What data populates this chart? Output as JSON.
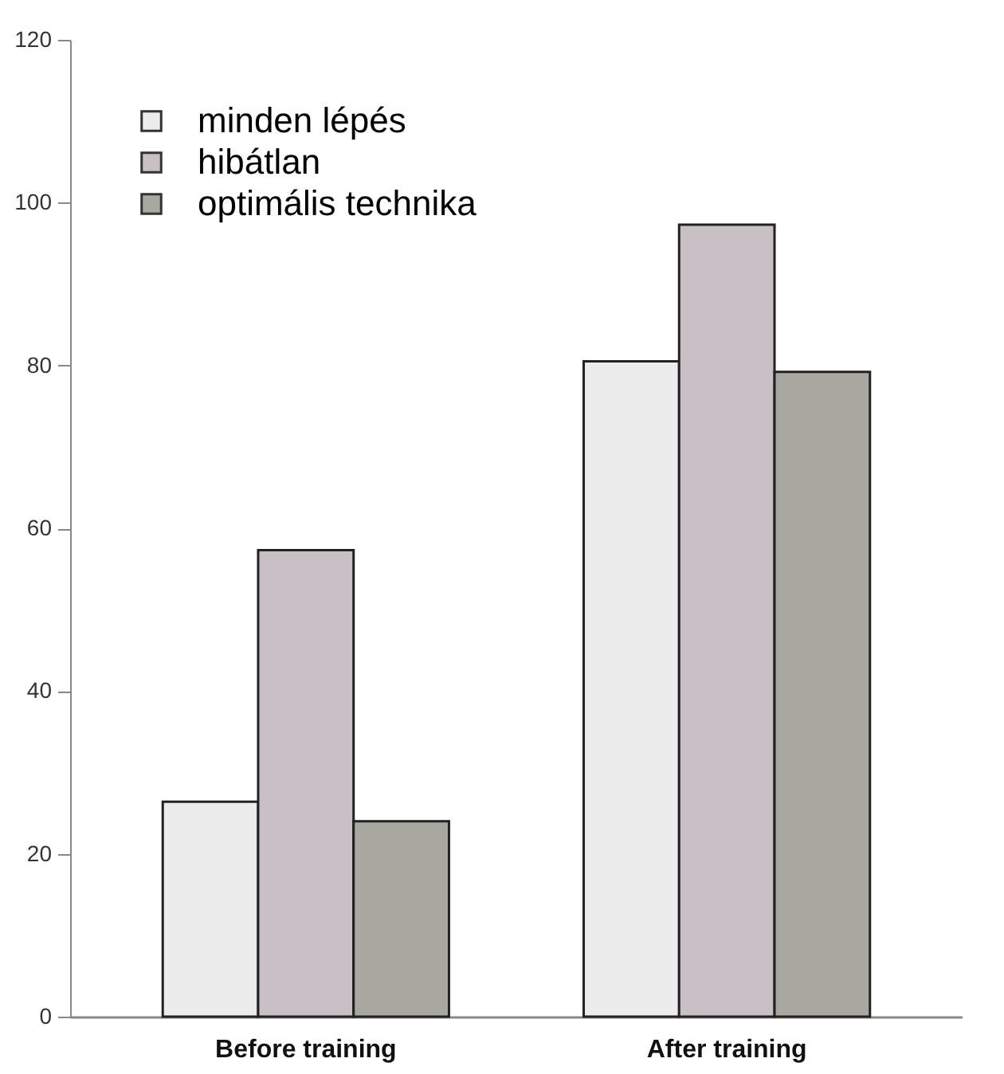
{
  "chart_data": {
    "type": "bar",
    "categories": [
      "Before training",
      "After training"
    ],
    "series": [
      {
        "name": "minden lépés",
        "color": "#ececec",
        "values": [
          26.4,
          80.5
        ]
      },
      {
        "name": "hibátlan",
        "color": "#c8c0c4",
        "values": [
          57.3,
          97.3
        ]
      },
      {
        "name": "optimális technika",
        "color": "#a8a8a0",
        "values": [
          24.0,
          79.2
        ]
      }
    ],
    "ylim": [
      0,
      120
    ],
    "yticks": [
      0,
      20,
      40,
      60,
      80,
      100,
      120
    ],
    "grid": false,
    "legend": "top left"
  }
}
